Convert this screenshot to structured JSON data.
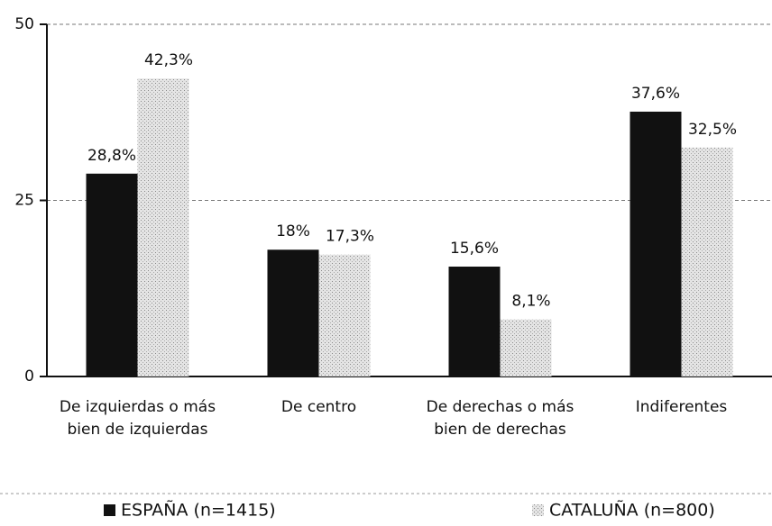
{
  "chart_data": {
    "type": "bar",
    "categories": [
      "De izquierdas o más bien de izquierdas",
      "De centro",
      "De derechas o más bien de derechas",
      "Indiferentes"
    ],
    "series": [
      {
        "name": "ESPAÑA (n=1415)",
        "color": "#111111",
        "values": [
          28.8,
          18,
          15.6,
          37.6
        ],
        "value_labels": [
          "28,8%",
          "18%",
          "15,6%",
          "37,6%"
        ]
      },
      {
        "name": "CATALUÑA (n=800)",
        "color": "#d4d4d4",
        "values": [
          42.3,
          17.3,
          8.1,
          32.5
        ],
        "value_labels": [
          "42,3%",
          "17,3%",
          "8,1%",
          "32,5%"
        ]
      }
    ],
    "ylim": [
      0,
      50
    ],
    "yticks": [
      0,
      25,
      50
    ],
    "grid": true
  }
}
